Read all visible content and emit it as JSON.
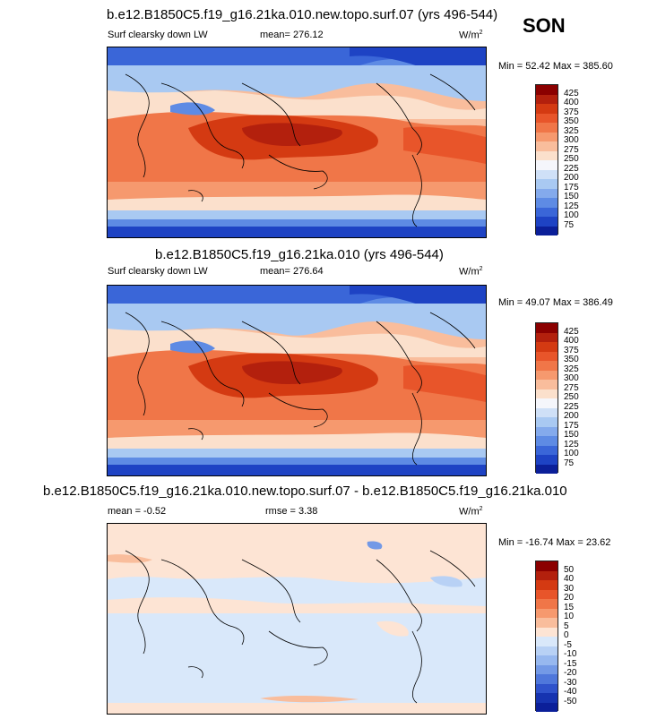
{
  "season": "SON",
  "panels": [
    {
      "title": "b.e12.B1850C5.f19_g16.21ka.010.new.topo.surf.07 (yrs 496-544)",
      "variable": "Surf clearsky down LW",
      "stat_label": "mean= 276.12",
      "units": "W/m",
      "units_sup": "2",
      "minmax": "Min =  52.42 Max = 385.60",
      "palette": "abs"
    },
    {
      "title": "b.e12.B1850C5.f19_g16.21ka.010 (yrs 496-544)",
      "variable": "Surf clearsky down LW",
      "stat_label": "mean= 276.64",
      "units": "W/m",
      "units_sup": "2",
      "minmax": "Min = 49.07 Max = 386.49",
      "palette": "abs"
    },
    {
      "title": "b.e12.B1850C5.f19_g16.21ka.010.new.topo.surf.07 - b.e12.B1850C5.f19_g16.21ka.010",
      "variable": "mean =  -0.52",
      "stat_label": "rmse =   3.38",
      "units": "W/m",
      "units_sup": "2",
      "minmax": "Min = -16.74 Max =  23.62",
      "palette": "diff"
    }
  ],
  "colorbars": {
    "abs": {
      "labels": [
        "425",
        "400",
        "375",
        "350",
        "325",
        "300",
        "275",
        "250",
        "225",
        "200",
        "175",
        "150",
        "125",
        "100",
        "75"
      ],
      "colors": [
        "#8b0000",
        "#b3200d",
        "#d43a12",
        "#e8552a",
        "#f07648",
        "#f6996e",
        "#f9bd9c",
        "#fbe0cc",
        "#f5f6fb",
        "#cfe0f7",
        "#a9c9f2",
        "#84aaec",
        "#5e8be4",
        "#3a66d8",
        "#1e43c4",
        "#0b1f99"
      ]
    },
    "diff": {
      "labels": [
        "50",
        "40",
        "30",
        "20",
        "15",
        "10",
        "5",
        "0",
        "-5",
        "-10",
        "-15",
        "-20",
        "-30",
        "-40",
        "-50"
      ],
      "colors": [
        "#8b0000",
        "#b3200d",
        "#d43a12",
        "#e8552a",
        "#f07648",
        "#f6996e",
        "#f9bd9c",
        "#fde4d4",
        "#d9e8fa",
        "#b8d1f5",
        "#97b8ef",
        "#7399e6",
        "#4f77db",
        "#2f52cb",
        "#1633b0",
        "#0b1f99"
      ]
    }
  }
}
